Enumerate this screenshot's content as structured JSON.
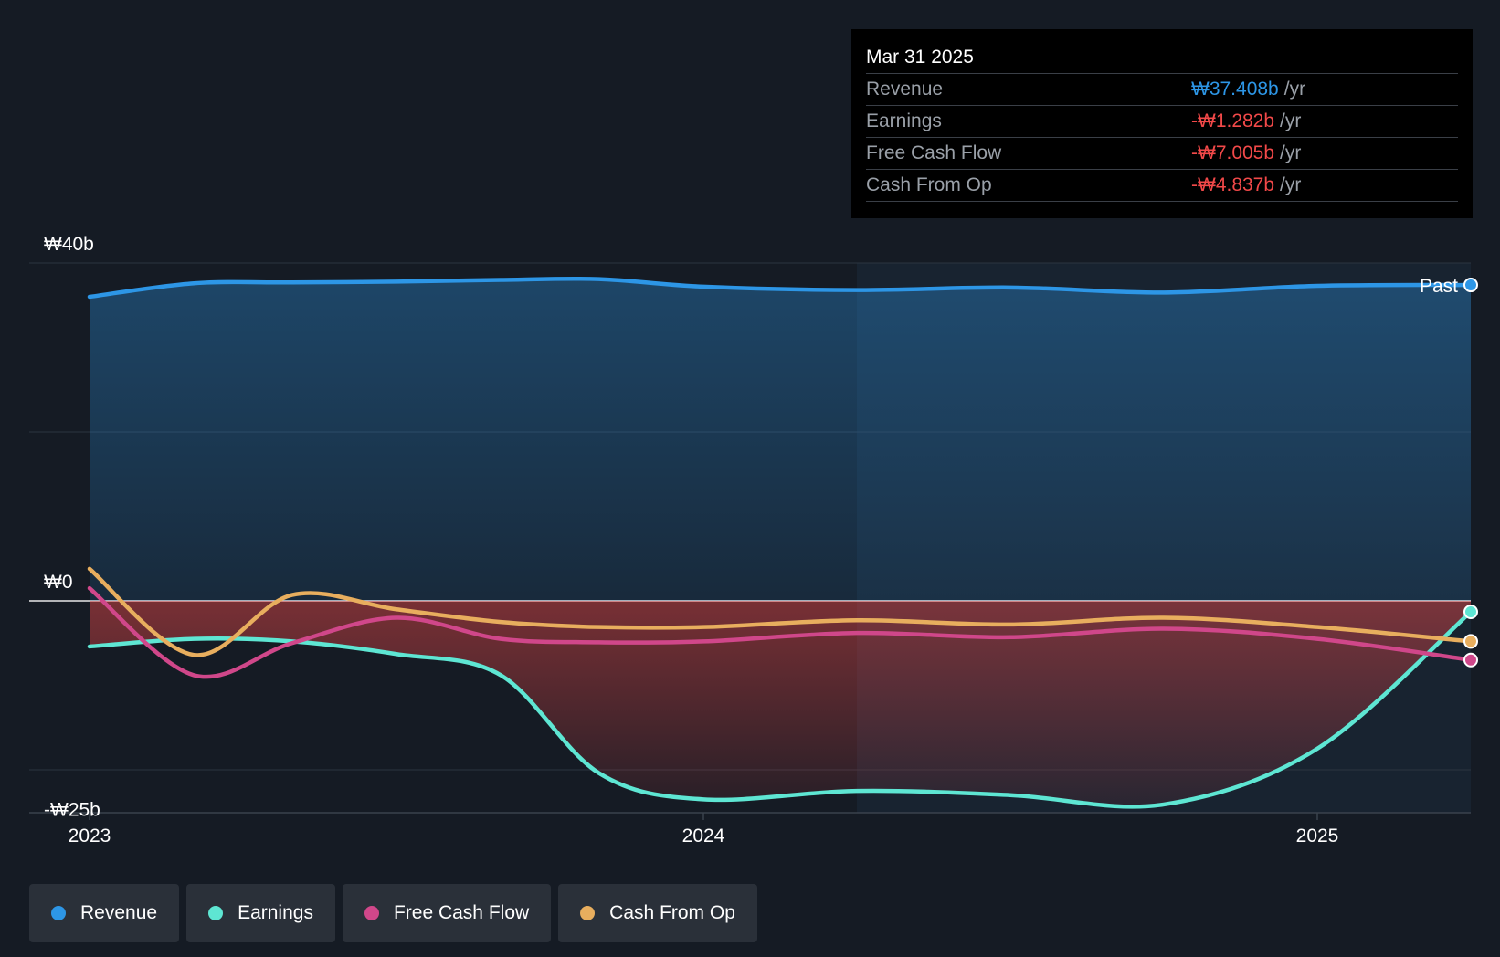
{
  "colors": {
    "revenue": "#2d96e6",
    "earnings": "#5ee6d3",
    "free_cash_flow": "#d0478a",
    "cash_from_op": "#e8ae5e",
    "negative_value": "#f24949",
    "background": "#151b24"
  },
  "tooltip": {
    "date": "Mar 31 2025",
    "rows": [
      {
        "label": "Revenue",
        "value": "₩37.408b",
        "unit": "/yr"
      },
      {
        "label": "Earnings",
        "value": "-₩1.282b",
        "unit": "/yr"
      },
      {
        "label": "Free Cash Flow",
        "value": "-₩7.005b",
        "unit": "/yr"
      },
      {
        "label": "Cash From Op",
        "value": "-₩4.837b",
        "unit": "/yr"
      }
    ]
  },
  "past_label": "Past",
  "legend": [
    {
      "label": "Revenue",
      "color_key": "revenue"
    },
    {
      "label": "Earnings",
      "color_key": "earnings"
    },
    {
      "label": "Free Cash Flow",
      "color_key": "free_cash_flow"
    },
    {
      "label": "Cash From Op",
      "color_key": "cash_from_op"
    }
  ],
  "chart_data": {
    "type": "line",
    "title": "",
    "xlabel": "",
    "ylabel": "",
    "y_tick_labels": [
      "₩40b",
      "₩0",
      "-₩25b"
    ],
    "y_ticks": [
      40,
      0,
      -25
    ],
    "x_tick_labels": [
      "2023",
      "2024",
      "2025"
    ],
    "x_ticks": [
      2023.0,
      2024.0,
      2025.0
    ],
    "xlim": [
      2022.9,
      2025.33
    ],
    "ylim": [
      -31.5,
      40
    ],
    "grid": true,
    "highlight_start": 2024.25,
    "series": [
      {
        "name": "Revenue",
        "color_key": "revenue",
        "x": [
          2023.0,
          2023.17,
          2023.33,
          2023.5,
          2023.67,
          2023.83,
          2024.0,
          2024.25,
          2024.5,
          2024.75,
          2025.0,
          2025.25
        ],
        "y": [
          36.0,
          37.6,
          37.7,
          37.8,
          38.0,
          38.1,
          37.2,
          36.8,
          37.1,
          36.5,
          37.3,
          37.4
        ]
      },
      {
        "name": "Earnings",
        "color_key": "earnings",
        "x": [
          2023.0,
          2023.17,
          2023.33,
          2023.5,
          2023.67,
          2023.83,
          2024.0,
          2024.25,
          2024.5,
          2024.75,
          2025.0,
          2025.25
        ],
        "y": [
          -5.4,
          -4.5,
          -4.8,
          -6.3,
          -8.8,
          -20.4,
          -23.5,
          -22.5,
          -23.0,
          -24.1,
          -17.5,
          -1.3
        ]
      },
      {
        "name": "Free Cash Flow",
        "color_key": "free_cash_flow",
        "x": [
          2023.0,
          2023.17,
          2023.33,
          2023.5,
          2023.67,
          2023.83,
          2024.0,
          2024.25,
          2024.5,
          2024.75,
          2025.0,
          2025.25
        ],
        "y": [
          1.5,
          -8.8,
          -5.0,
          -2.0,
          -4.5,
          -4.9,
          -4.8,
          -3.8,
          -4.3,
          -3.3,
          -4.5,
          -7.0
        ]
      },
      {
        "name": "Cash From Op",
        "color_key": "cash_from_op",
        "x": [
          2023.0,
          2023.17,
          2023.33,
          2023.5,
          2023.67,
          2023.83,
          2024.0,
          2024.25,
          2024.5,
          2024.75,
          2025.0,
          2025.25
        ],
        "y": [
          3.8,
          -6.4,
          0.7,
          -1.0,
          -2.5,
          -3.1,
          -3.1,
          -2.3,
          -2.8,
          -2.0,
          -3.1,
          -4.8
        ]
      }
    ]
  }
}
